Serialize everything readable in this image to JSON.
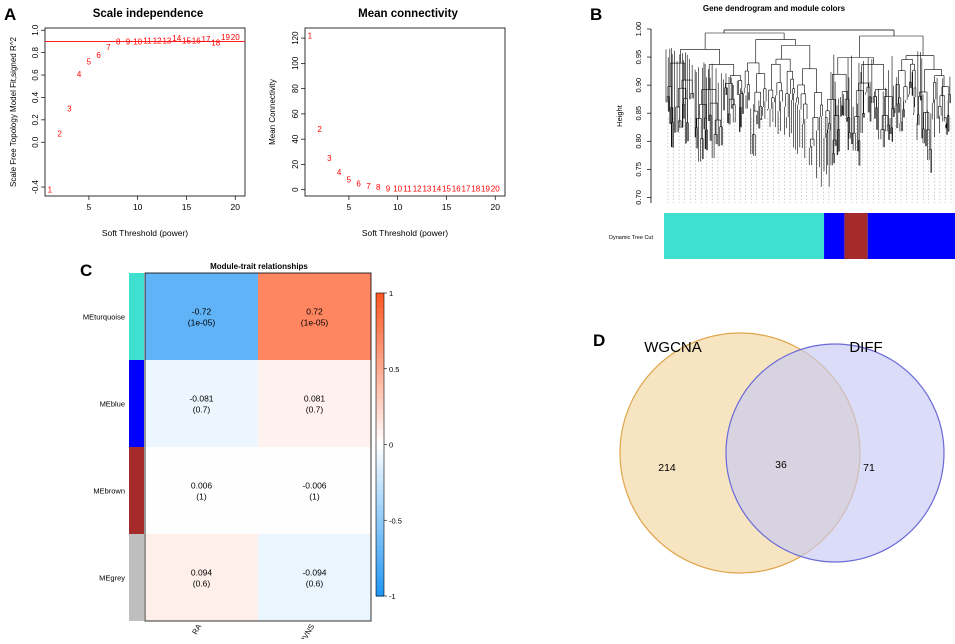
{
  "colors": {
    "point_red": "#ff0000",
    "turquoise": "#40e0d0",
    "blue": "#0000ff",
    "brown": "#a52a2a",
    "grey": "#bebebe",
    "venn_left_fill": "#f6dfb6",
    "venn_left_stroke": "#e0a54a",
    "venn_right_fill": "#c8c9f2",
    "venn_right_stroke": "#6a6ad8"
  },
  "panels": {
    "a": {
      "letter": "A"
    },
    "b": {
      "letter": "B"
    },
    "c": {
      "letter": "C"
    },
    "d": {
      "letter": "D"
    }
  },
  "chart_data": [
    {
      "id": "scale_independence",
      "type": "scatter",
      "title": "Scale independence",
      "xlabel": "Soft Threshold (power)",
      "ylabel": "Scale Free Topology Model Fit,signed R^2",
      "xlim": [
        0.5,
        21
      ],
      "ylim": [
        -0.48,
        1.02
      ],
      "xticks": [
        5,
        10,
        15,
        20
      ],
      "yticks": [
        -0.4,
        0.0,
        0.2,
        0.4,
        0.6,
        0.8,
        1.0
      ],
      "ytick_labels": [
        "-0.4",
        "0.0",
        "0.2",
        "0.4",
        "0.6",
        "0.8",
        "1.0"
      ],
      "x": [
        1,
        2,
        3,
        4,
        5,
        6,
        7,
        8,
        9,
        10,
        11,
        12,
        13,
        14,
        15,
        16,
        17,
        18,
        19,
        20
      ],
      "y": [
        -0.42,
        0.08,
        0.3,
        0.61,
        0.72,
        0.78,
        0.85,
        0.9,
        0.9,
        0.9,
        0.91,
        0.91,
        0.91,
        0.93,
        0.91,
        0.91,
        0.92,
        0.89,
        0.94,
        0.94
      ],
      "point_labels": [
        "1",
        "2",
        "3",
        "4",
        "5",
        "6",
        "7",
        "8",
        "9",
        "10",
        "11",
        "12",
        "13",
        "14",
        "15",
        "16",
        "17",
        "18",
        "19",
        "20"
      ],
      "hline": 0.9
    },
    {
      "id": "mean_connectivity",
      "type": "scatter",
      "title": "Mean connectivity",
      "xlabel": "Soft Threshold (power)",
      "ylabel": "Mean Connectivity",
      "xlim": [
        0.5,
        21
      ],
      "ylim": [
        -5,
        128
      ],
      "xticks": [
        5,
        10,
        15,
        20
      ],
      "yticks": [
        0,
        20,
        40,
        60,
        80,
        100,
        120
      ],
      "ytick_labels": [
        "0",
        "20",
        "40",
        "60",
        "80",
        "100",
        "120"
      ],
      "x": [
        1,
        2,
        3,
        4,
        5,
        6,
        7,
        8,
        9,
        10,
        11,
        12,
        13,
        14,
        15,
        16,
        17,
        18,
        19,
        20
      ],
      "y": [
        122,
        48,
        25,
        14,
        8,
        5,
        3,
        2,
        1,
        1,
        1,
        1,
        1,
        1,
        1,
        1,
        1,
        1,
        1,
        1
      ],
      "point_labels": [
        "1",
        "2",
        "3",
        "4",
        "5",
        "6",
        "7",
        "8",
        "9",
        "10",
        "11",
        "12",
        "13",
        "14",
        "15",
        "16",
        "17",
        "18",
        "19",
        "20"
      ]
    },
    {
      "id": "dendrogram",
      "type": "dendrogram",
      "title": "Gene dendrogram and module colors",
      "ylabel": "Height",
      "ylim": [
        0.69,
        1.0
      ],
      "yticks": [
        0.7,
        0.75,
        0.8,
        0.85,
        0.9,
        0.95,
        1.0
      ],
      "ytick_labels": [
        "0.70",
        "0.75",
        "0.80",
        "0.85",
        "0.90",
        "0.95",
        "1.00"
      ],
      "color_bar_label": "Dynamic Tree Cut",
      "color_bar_segments": [
        {
          "module": "turquoise",
          "fraction": 0.55
        },
        {
          "module": "blue",
          "fraction": 0.07
        },
        {
          "module": "brown",
          "fraction": 0.08
        },
        {
          "module": "blue",
          "fraction": 0.3
        }
      ]
    },
    {
      "id": "module_trait",
      "type": "heatmap",
      "title": "Module-trait relationships",
      "rows": [
        "MEturquoise",
        "MEblue",
        "MEbrown",
        "MEgrey"
      ],
      "row_colors": [
        "turquoise",
        "blue",
        "brown",
        "grey"
      ],
      "columns": [
        "RA",
        "PVNS"
      ],
      "values": [
        [
          -0.72,
          0.72
        ],
        [
          -0.081,
          0.081
        ],
        [
          0.006,
          -0.006
        ],
        [
          0.094,
          -0.094
        ]
      ],
      "value_labels": [
        [
          "-0.72",
          "0.72"
        ],
        [
          "-0.081",
          "0.081"
        ],
        [
          "0.006",
          "-0.006"
        ],
        [
          "0.094",
          "-0.094"
        ]
      ],
      "pvalues": [
        [
          "(1e-05)",
          "(1e-05)"
        ],
        [
          "(0.7)",
          "(0.7)"
        ],
        [
          "(1)",
          "(1)"
        ],
        [
          "(0.6)",
          "(0.6)"
        ]
      ],
      "colorbar_ticks": [
        1,
        0.5,
        0,
        -0.5,
        -1
      ],
      "colorbar_tick_labels": [
        "1",
        "0.5",
        "0",
        "-0.5",
        "-1"
      ]
    },
    {
      "id": "venn",
      "type": "venn",
      "sets": [
        "WGCNA",
        "DIFF"
      ],
      "only_left": "214",
      "intersection": "36",
      "only_right": "71"
    }
  ]
}
